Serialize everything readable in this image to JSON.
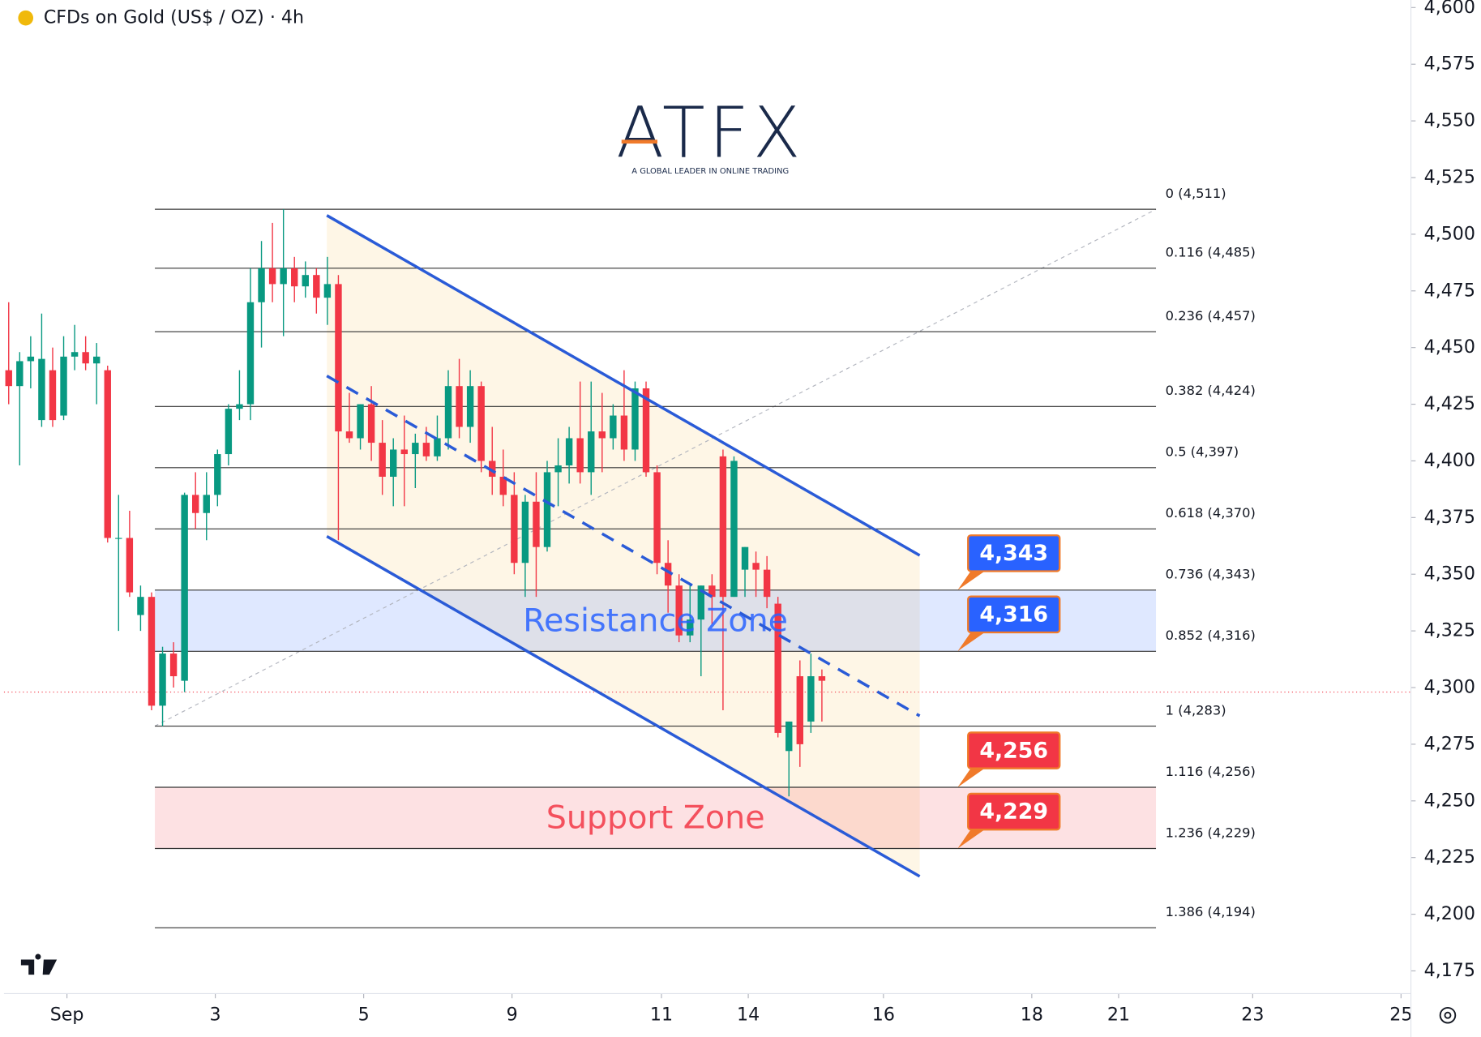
{
  "chart_data": {
    "type": "candlestick",
    "title": "CFDs on Gold (US$ / OZ) · 4h",
    "logo": {
      "name": "ATFX",
      "tagline": "A GLOBAL LEADER IN ONLINE TRADING"
    },
    "up_color": "#089981",
    "down_color": "#f23645",
    "xlim": [
      -0.43,
      127.6
    ],
    "ylim": [
      4175,
      4600
    ],
    "xticks": [
      {
        "value": 5.3,
        "label": "Sep"
      },
      {
        "value": 18.8,
        "label": "3"
      },
      {
        "value": 32.3,
        "label": "5"
      },
      {
        "value": 45.8,
        "label": "9"
      },
      {
        "value": 59.4,
        "label": "11"
      },
      {
        "value": 67.3,
        "label": "14"
      },
      {
        "value": 79.6,
        "label": "16"
      },
      {
        "value": 93.1,
        "label": "18"
      },
      {
        "value": 101.0,
        "label": "21"
      },
      {
        "value": 113.2,
        "label": "23"
      },
      {
        "value": 126.7,
        "label": "25"
      }
    ],
    "yticks": [
      {
        "value": 4175,
        "label": "4,175"
      },
      {
        "value": 4200,
        "label": "4,200"
      },
      {
        "value": 4225,
        "label": "4,225"
      },
      {
        "value": 4250,
        "label": "4,250"
      },
      {
        "value": 4275,
        "label": "4,275"
      },
      {
        "value": 4300,
        "label": "4,300"
      },
      {
        "value": 4325,
        "label": "4,325"
      },
      {
        "value": 4350,
        "label": "4,350"
      },
      {
        "value": 4375,
        "label": "4,375"
      },
      {
        "value": 4400,
        "label": "4,400"
      },
      {
        "value": 4425,
        "label": "4,425"
      },
      {
        "value": 4450,
        "label": "4,450"
      },
      {
        "value": 4475,
        "label": "4,475"
      },
      {
        "value": 4500,
        "label": "4,500"
      },
      {
        "value": 4525,
        "label": "4,525"
      },
      {
        "value": 4550,
        "label": "4,550"
      },
      {
        "value": 4575,
        "label": "4,575"
      },
      {
        "value": 4600,
        "label": "4,600"
      }
    ],
    "candles": [
      {
        "o": 4440,
        "h": 4470,
        "l": 4425,
        "c": 4433
      },
      {
        "o": 4433,
        "h": 4448,
        "l": 4398,
        "c": 4444
      },
      {
        "o": 4444,
        "h": 4455,
        "l": 4432,
        "c": 4446
      },
      {
        "o": 4418,
        "h": 4465,
        "l": 4415,
        "c": 4445
      },
      {
        "o": 4440,
        "h": 4450,
        "l": 4415,
        "c": 4418
      },
      {
        "o": 4420,
        "h": 4455,
        "l": 4418,
        "c": 4446
      },
      {
        "o": 4446,
        "h": 4460,
        "l": 4440,
        "c": 4448
      },
      {
        "o": 4448,
        "h": 4455,
        "l": 4440,
        "c": 4443
      },
      {
        "o": 4443,
        "h": 4452,
        "l": 4425,
        "c": 4446
      },
      {
        "o": 4440,
        "h": 4442,
        "l": 4364,
        "c": 4366
      },
      {
        "o": 4366,
        "h": 4385,
        "l": 4325,
        "c": 4366
      },
      {
        "o": 4366,
        "h": 4378,
        "l": 4340,
        "c": 4342
      },
      {
        "o": 4332,
        "h": 4345,
        "l": 4325,
        "c": 4340
      },
      {
        "o": 4340,
        "h": 4342,
        "l": 4290,
        "c": 4292
      },
      {
        "o": 4292,
        "h": 4318,
        "l": 4283,
        "c": 4315
      },
      {
        "o": 4315,
        "h": 4320,
        "l": 4300,
        "c": 4305
      },
      {
        "o": 4303,
        "h": 4386,
        "l": 4298,
        "c": 4385
      },
      {
        "o": 4385,
        "h": 4395,
        "l": 4370,
        "c": 4377
      },
      {
        "o": 4377,
        "h": 4395,
        "l": 4365,
        "c": 4385
      },
      {
        "o": 4385,
        "h": 4405,
        "l": 4380,
        "c": 4403
      },
      {
        "o": 4403,
        "h": 4425,
        "l": 4398,
        "c": 4423
      },
      {
        "o": 4423,
        "h": 4440,
        "l": 4418,
        "c": 4425
      },
      {
        "o": 4425,
        "h": 4485,
        "l": 4418,
        "c": 4470
      },
      {
        "o": 4470,
        "h": 4497,
        "l": 4450,
        "c": 4485
      },
      {
        "o": 4485,
        "h": 4505,
        "l": 4470,
        "c": 4478
      },
      {
        "o": 4478,
        "h": 4511,
        "l": 4455,
        "c": 4485
      },
      {
        "o": 4485,
        "h": 4490,
        "l": 4470,
        "c": 4477
      },
      {
        "o": 4477,
        "h": 4488,
        "l": 4472,
        "c": 4482
      },
      {
        "o": 4482,
        "h": 4485,
        "l": 4465,
        "c": 4472
      },
      {
        "o": 4472,
        "h": 4490,
        "l": 4460,
        "c": 4478
      },
      {
        "o": 4478,
        "h": 4482,
        "l": 4365,
        "c": 4413
      },
      {
        "o": 4413,
        "h": 4430,
        "l": 4408,
        "c": 4410
      },
      {
        "o": 4410,
        "h": 4425,
        "l": 4405,
        "c": 4425
      },
      {
        "o": 4425,
        "h": 4433,
        "l": 4400,
        "c": 4408
      },
      {
        "o": 4408,
        "h": 4418,
        "l": 4385,
        "c": 4393
      },
      {
        "o": 4393,
        "h": 4410,
        "l": 4380,
        "c": 4405
      },
      {
        "o": 4405,
        "h": 4420,
        "l": 4380,
        "c": 4403
      },
      {
        "o": 4403,
        "h": 4412,
        "l": 4388,
        "c": 4408
      },
      {
        "o": 4408,
        "h": 4415,
        "l": 4400,
        "c": 4402
      },
      {
        "o": 4402,
        "h": 4420,
        "l": 4400,
        "c": 4410
      },
      {
        "o": 4410,
        "h": 4440,
        "l": 4405,
        "c": 4433
      },
      {
        "o": 4433,
        "h": 4445,
        "l": 4410,
        "c": 4415
      },
      {
        "o": 4415,
        "h": 4440,
        "l": 4408,
        "c": 4433
      },
      {
        "o": 4433,
        "h": 4435,
        "l": 4395,
        "c": 4400
      },
      {
        "o": 4400,
        "h": 4415,
        "l": 4385,
        "c": 4393
      },
      {
        "o": 4393,
        "h": 4405,
        "l": 4380,
        "c": 4385
      },
      {
        "o": 4385,
        "h": 4395,
        "l": 4350,
        "c": 4355
      },
      {
        "o": 4355,
        "h": 4385,
        "l": 4340,
        "c": 4382
      },
      {
        "o": 4382,
        "h": 4395,
        "l": 4340,
        "c": 4362
      },
      {
        "o": 4362,
        "h": 4400,
        "l": 4360,
        "c": 4395
      },
      {
        "o": 4395,
        "h": 4410,
        "l": 4380,
        "c": 4398
      },
      {
        "o": 4398,
        "h": 4415,
        "l": 4390,
        "c": 4410
      },
      {
        "o": 4410,
        "h": 4435,
        "l": 4390,
        "c": 4395
      },
      {
        "o": 4395,
        "h": 4435,
        "l": 4385,
        "c": 4413
      },
      {
        "o": 4413,
        "h": 4430,
        "l": 4395,
        "c": 4410
      },
      {
        "o": 4410,
        "h": 4425,
        "l": 4405,
        "c": 4420
      },
      {
        "o": 4420,
        "h": 4440,
        "l": 4400,
        "c": 4405
      },
      {
        "o": 4405,
        "h": 4435,
        "l": 4400,
        "c": 4432
      },
      {
        "o": 4432,
        "h": 4435,
        "l": 4393,
        "c": 4395
      },
      {
        "o": 4395,
        "h": 4398,
        "l": 4350,
        "c": 4355
      },
      {
        "o": 4355,
        "h": 4365,
        "l": 4333,
        "c": 4345
      },
      {
        "o": 4345,
        "h": 4350,
        "l": 4320,
        "c": 4323
      },
      {
        "o": 4323,
        "h": 4345,
        "l": 4320,
        "c": 4330
      },
      {
        "o": 4330,
        "h": 4345,
        "l": 4305,
        "c": 4345
      },
      {
        "o": 4345,
        "h": 4350,
        "l": 4328,
        "c": 4340
      },
      {
        "o": 4402,
        "h": 4405,
        "l": 4290,
        "c": 4340
      },
      {
        "o": 4340,
        "h": 4402,
        "l": 4340,
        "c": 4400
      },
      {
        "o": 4352,
        "h": 4362,
        "l": 4340,
        "c": 4362
      },
      {
        "o": 4355,
        "h": 4360,
        "l": 4340,
        "c": 4352
      },
      {
        "o": 4352,
        "h": 4358,
        "l": 4335,
        "c": 4340
      },
      {
        "o": 4337,
        "h": 4340,
        "l": 4278,
        "c": 4280
      },
      {
        "o": 4272,
        "h": 4285,
        "l": 4252,
        "c": 4285
      },
      {
        "o": 4305,
        "h": 4312,
        "l": 4265,
        "c": 4275
      },
      {
        "o": 4285,
        "h": 4315,
        "l": 4280,
        "c": 4305
      },
      {
        "o": 4305,
        "h": 4308,
        "l": 4285,
        "c": 4303
      }
    ],
    "last_price": 4298,
    "fib": {
      "x": [
        13.3,
        104.4
      ],
      "levels": [
        4511,
        4485,
        4457,
        4424,
        4397,
        4370,
        4343,
        4316,
        4283,
        4256,
        4229,
        4194
      ],
      "labels": [
        "0 (4,511)",
        "0.116 (4,485)",
        "0.236 (4,457)",
        "0.382 (4,424)",
        "0.5 (4,397)",
        "0.618 (4,370)",
        "0.736 (4,343)",
        "0.852 (4,316)",
        "1 (4,283)",
        "1.116 (4,256)",
        "1.236 (4,229)",
        "1.386 (4,194)"
      ]
    },
    "fib_trend": {
      "x": [
        13.3,
        104.4
      ],
      "y": [
        4283,
        4511
      ]
    },
    "zones": [
      {
        "label": "Resistance Zone",
        "from": 4316,
        "to": 4343,
        "color": "#2962ff"
      },
      {
        "label": "Support Zone",
        "from": 4229,
        "to": 4256,
        "color": "#f23645"
      }
    ],
    "channel": {
      "x": [
        28.95,
        82.9
      ],
      "upper": [
        4508.3,
        4358.3
      ],
      "middle": [
        4437.5,
        4287.5
      ],
      "lower": [
        4366.7,
        4216.7
      ],
      "color": "#2a5bd7"
    },
    "price_tags": [
      {
        "value": 4343,
        "label": "4,343",
        "color": "#2962ff"
      },
      {
        "value": 4316,
        "label": "4,316",
        "color": "#2962ff"
      },
      {
        "value": 4256,
        "label": "4,256",
        "color": "#f23645"
      },
      {
        "value": 4229,
        "label": "4,229",
        "color": "#f23645"
      }
    ]
  }
}
